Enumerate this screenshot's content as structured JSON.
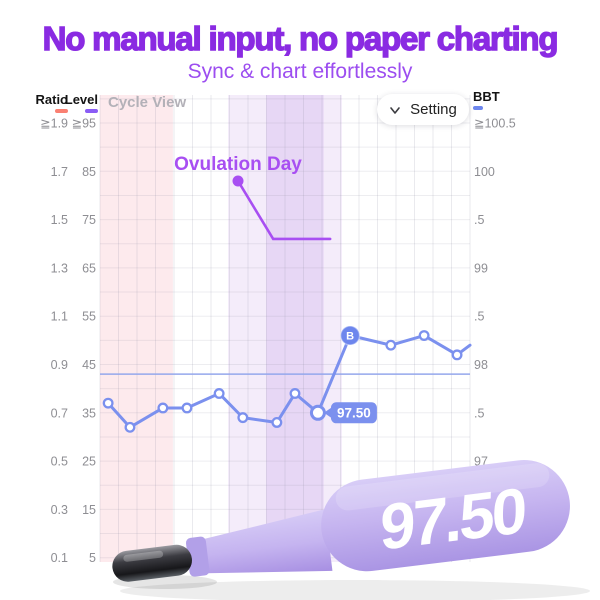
{
  "header": {
    "title": "No manual input, no paper charting",
    "subtitle": "Sync & chart effortlessly",
    "title_color": "#8a2be2",
    "subtitle_color": "#9c4df0"
  },
  "toolbar": {
    "cycle_view_label": "Cycle View",
    "setting_label": "Setting"
  },
  "chart_data": {
    "type": "line",
    "legend": {
      "ratio": {
        "label": "Ratio",
        "threshold": "≧1.9",
        "color": "#fa8072"
      },
      "level": {
        "label": "Level",
        "threshold": "≧95",
        "color": "#8a5cf5"
      },
      "bbt": {
        "label": "BBT",
        "threshold": "≧100.5",
        "color": "#6d86ed"
      }
    },
    "axes": {
      "left_ratio_ticks": [
        "≧1.9",
        "1.7",
        "1.5",
        "1.3",
        "1.1",
        "0.9",
        "0.7",
        "0.5",
        "0.3",
        "0.1"
      ],
      "left_level_ticks": [
        "≧95",
        "85",
        "75",
        "65",
        "55",
        "45",
        "35",
        "25",
        "15",
        "5"
      ],
      "right_bbt_ticks": [
        "≧100.5",
        "100",
        ".5",
        "99",
        ".5",
        "98",
        ".5",
        "97"
      ],
      "bbt_axis_unit": "°F",
      "grid": true
    },
    "phases": [
      {
        "name": "period",
        "x_frac_start": 0.0,
        "x_frac_end": 0.197,
        "color": "#fdeaed"
      },
      {
        "name": "fertile-window-start",
        "x_frac_start": 0.346,
        "x_frac_end": 0.449,
        "color": "#f4ecfa"
      },
      {
        "name": "ovulation",
        "x_frac_start": 0.449,
        "x_frac_end": 0.605,
        "color": "#e7d7f5"
      },
      {
        "name": "fertile-window-end",
        "x_frac_start": 0.605,
        "x_frac_end": 0.654,
        "color": "#f4ecfa"
      }
    ],
    "coverline": {
      "bbt": 97.9,
      "color": "#94a7ec"
    },
    "annotation": {
      "label": "Ovulation Day",
      "color": "#a84ff2",
      "dot": {
        "x_frac": 0.373,
        "bbt": 99.9
      },
      "elbow": {
        "x_frac": 0.468,
        "bbt": 99.3
      },
      "line_end_x_frac": 0.622
    },
    "series": [
      {
        "name": "BBT",
        "color": "#7b90ee",
        "points": [
          {
            "x_frac": 0.022,
            "bbt": 97.6
          },
          {
            "x_frac": 0.081,
            "bbt": 97.35
          },
          {
            "x_frac": 0.17,
            "bbt": 97.55
          },
          {
            "x_frac": 0.235,
            "bbt": 97.55
          },
          {
            "x_frac": 0.322,
            "bbt": 97.7
          },
          {
            "x_frac": 0.386,
            "bbt": 97.45
          },
          {
            "x_frac": 0.478,
            "bbt": 97.4
          },
          {
            "x_frac": 0.527,
            "bbt": 97.7
          },
          {
            "x_frac": 0.589,
            "bbt": 97.5,
            "highlight": true,
            "tooltip": "97.50"
          },
          {
            "x_frac": 0.676,
            "bbt": 98.3,
            "badge": "B"
          },
          {
            "x_frac": 0.786,
            "bbt": 98.2
          },
          {
            "x_frac": 0.876,
            "bbt": 98.3
          },
          {
            "x_frac": 0.965,
            "bbt": 98.1
          },
          {
            "x_frac": 1.0,
            "bbt": 98.2,
            "marker": false
          }
        ]
      }
    ]
  },
  "thermometer": {
    "display_value": "97.50",
    "body_color": "#c5b3ef"
  }
}
